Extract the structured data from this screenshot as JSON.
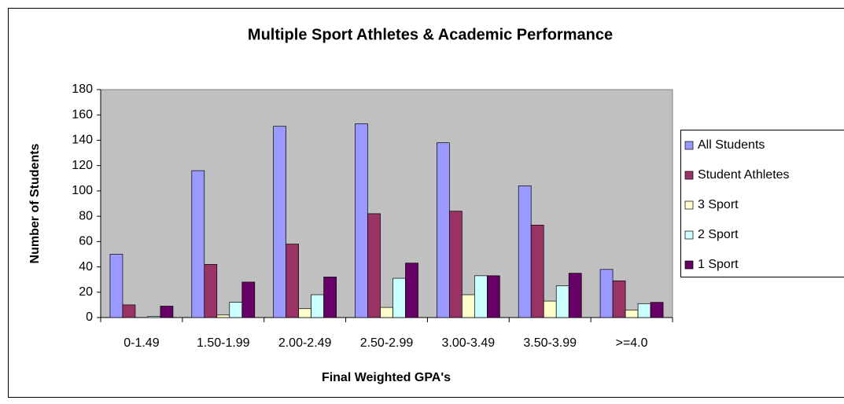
{
  "chart_data": {
    "type": "bar",
    "title": "Multiple Sport Athletes & Academic Performance",
    "x_label": "Final Weighted GPA's",
    "y_label": "Number of Students",
    "categories": [
      "0-1.49",
      "1.50-1.99",
      "2.00-2.49",
      "2.50-2.99",
      "3.00-3.49",
      "3.50-3.99",
      ">=4.0"
    ],
    "series": [
      {
        "name": "All Students",
        "color": "#9999ff",
        "values": [
          50,
          116,
          151,
          153,
          138,
          104,
          38
        ]
      },
      {
        "name": "Student Athletes",
        "color": "#993366",
        "values": [
          10,
          42,
          58,
          82,
          84,
          73,
          29
        ]
      },
      {
        "name": "3 Sport",
        "color": "#ffffcc",
        "values": [
          0,
          2,
          7,
          8,
          18,
          13,
          6
        ]
      },
      {
        "name": "2 Sport",
        "color": "#ccffff",
        "values": [
          1,
          12,
          18,
          31,
          33,
          25,
          11
        ]
      },
      {
        "name": "1 Sport",
        "color": "#660066",
        "values": [
          9,
          28,
          32,
          43,
          33,
          35,
          12
        ]
      }
    ],
    "ylim": [
      0,
      180
    ],
    "yticks": [
      0,
      20,
      40,
      60,
      80,
      100,
      120,
      140,
      160,
      180
    ],
    "grid": false,
    "legend": "right",
    "plot_background": "#c0c0c0"
  }
}
